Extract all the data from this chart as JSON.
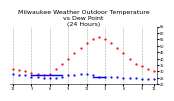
{
  "title": "Milwaukee Weather Outdoor Temperature\nvs Dew Point\n(24 Hours)",
  "title_fontsize": 4.5,
  "bg_color": "#ffffff",
  "grid_color": "#aaaaaa",
  "hours": [
    0,
    1,
    2,
    3,
    4,
    5,
    6,
    7,
    8,
    9,
    10,
    11,
    12,
    13,
    14,
    15,
    16,
    17,
    18,
    19,
    20,
    21,
    22,
    23
  ],
  "temp": [
    32,
    31,
    30,
    29,
    28,
    27,
    28,
    32,
    36,
    40,
    44,
    48,
    52,
    55,
    57,
    55,
    52,
    48,
    44,
    40,
    36,
    34,
    32,
    30
  ],
  "dew": [
    28,
    27,
    27,
    26,
    26,
    25,
    25,
    25,
    26,
    27,
    27,
    28,
    28,
    27,
    26,
    26,
    26,
    26,
    25,
    25,
    25,
    24,
    24,
    24
  ],
  "temp_color": "#ff0000",
  "dew_color": "#0000ff",
  "avg_color": "#000000",
  "ylim": [
    20,
    65
  ],
  "right_ticks": [
    20,
    25,
    30,
    35,
    40,
    45,
    50,
    55,
    60,
    65
  ],
  "x_tick_positions": [
    0,
    3,
    6,
    9,
    12,
    15,
    18,
    21,
    23
  ],
  "bottom_ticks_labels": [
    "12",
    "3",
    "6",
    "9",
    "12",
    "3",
    "6",
    "9",
    "12"
  ],
  "marker_size": 1.2
}
